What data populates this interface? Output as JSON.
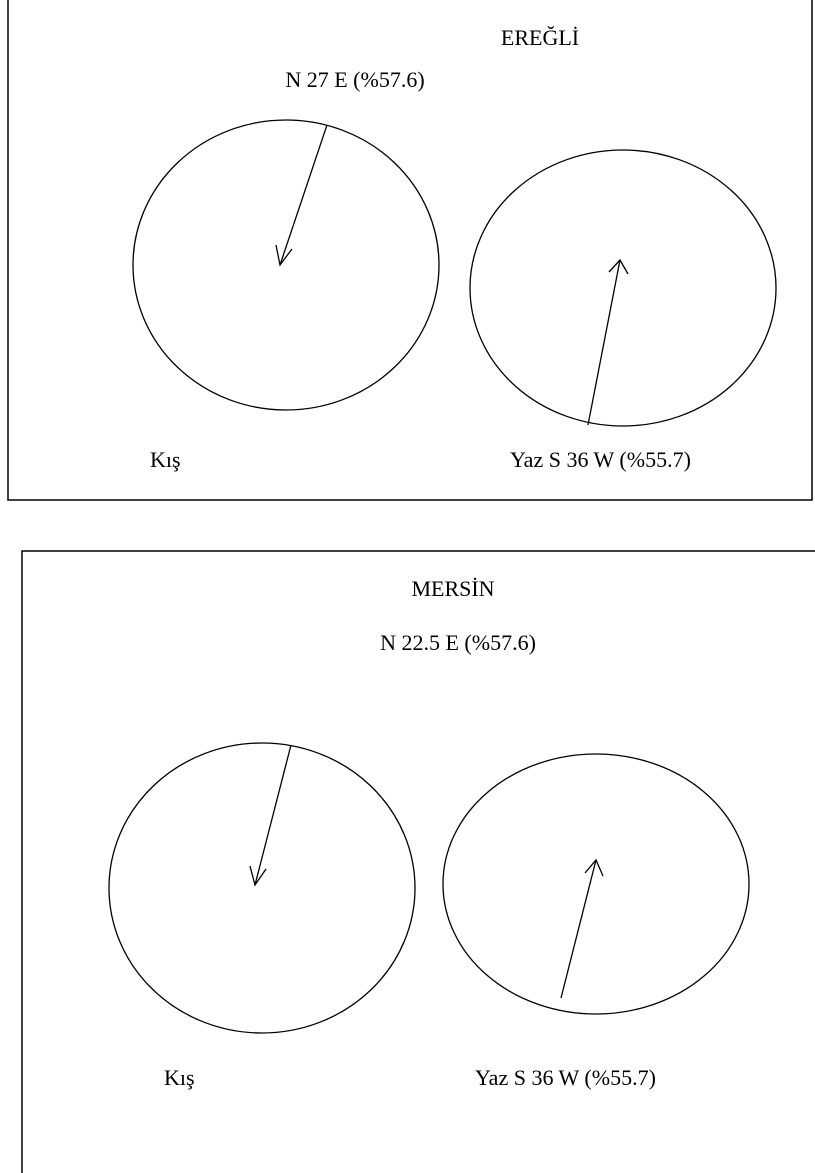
{
  "panels": [
    {
      "title": "EREĞLİ",
      "top_label": "N 27 E (%57.6)",
      "winter_label": "Kış",
      "summer_label": "Yaz  S 36 W (%55.7)"
    },
    {
      "title": "MERSİN",
      "top_label": "N 22.5 E (%57.6)",
      "winter_label": "Kış",
      "summer_label": "Yaz  S 36 W (%55.7)"
    }
  ]
}
